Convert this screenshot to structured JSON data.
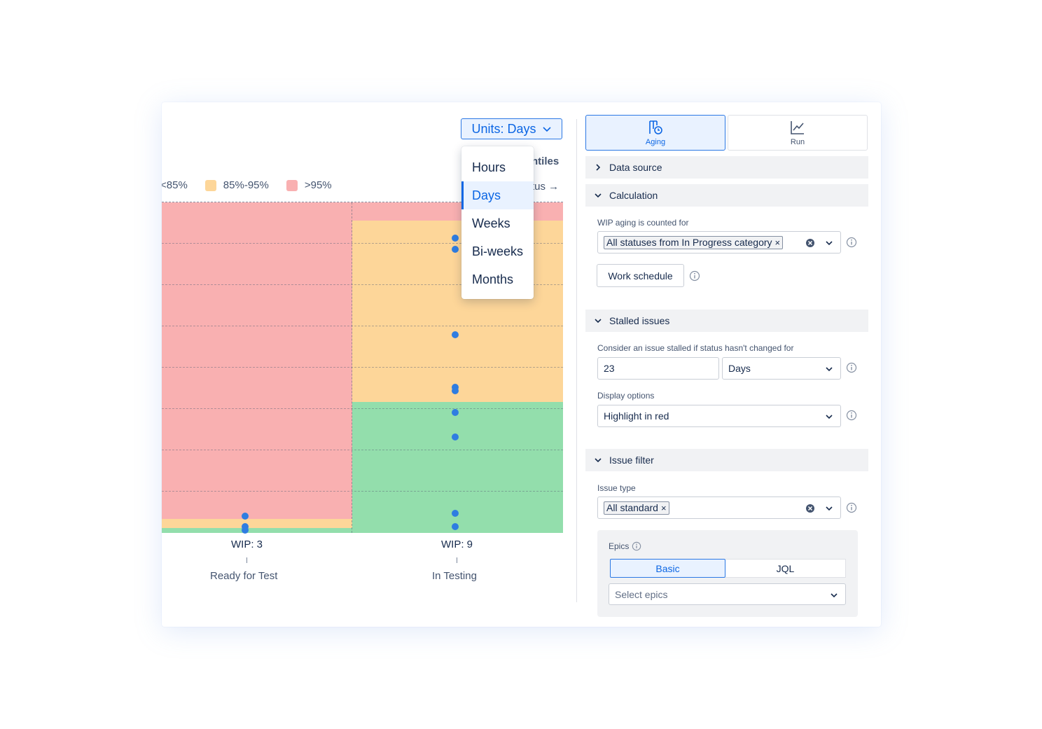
{
  "chart": {
    "units_button": "Units: Days",
    "partial_title": "ntiles",
    "partial_status": "tus →",
    "legend": [
      {
        "label": "<85%",
        "color": "#93deac"
      },
      {
        "label": "85%-95%",
        "color": "#fdd699"
      },
      {
        "label": ">95%",
        "color": "#f9b0b1"
      }
    ],
    "columns": [
      {
        "wip": "WIP: 3",
        "name": "Ready for Test"
      },
      {
        "wip": "WIP: 9",
        "name": "In Testing"
      }
    ],
    "units_menu": {
      "options": [
        "Hours",
        "Days",
        "Weeks",
        "Bi-weeks",
        "Months"
      ],
      "selected": "Days"
    },
    "colors": {
      "green": "#93deac",
      "orange": "#fdd699",
      "red": "#f9b0b1",
      "dot": "#2f7de1"
    }
  },
  "chart_data": {
    "type": "scatter",
    "categories": [
      "Ready for Test",
      "In Testing"
    ],
    "wip": [
      3,
      9
    ],
    "percentile_bands": [
      "<85%",
      "85%-95%",
      ">95%"
    ]
  },
  "panel": {
    "tabs": [
      {
        "label": "Aging",
        "icon": "aging-icon",
        "active": true
      },
      {
        "label": "Run",
        "icon": "line-chart-icon",
        "active": false
      }
    ],
    "sections": {
      "data_source": "Data source",
      "calculation": "Calculation",
      "stalled": "Stalled issues",
      "issue_filter": "Issue filter"
    },
    "wip_label": "WIP aging is counted for",
    "wip_tag": "All statuses from In Progress category",
    "work_schedule": "Work schedule",
    "stalled_label": "Consider an issue stalled if status hasn't changed for",
    "stalled_value": "23",
    "stalled_unit": "Days",
    "display_label": "Display options",
    "display_value": "Highlight in red",
    "issue_type_label": "Issue type",
    "issue_type_tag": "All standard",
    "epics_label": "Epics",
    "epics_modes": [
      "Basic",
      "JQL"
    ],
    "epics_placeholder": "Select epics"
  }
}
